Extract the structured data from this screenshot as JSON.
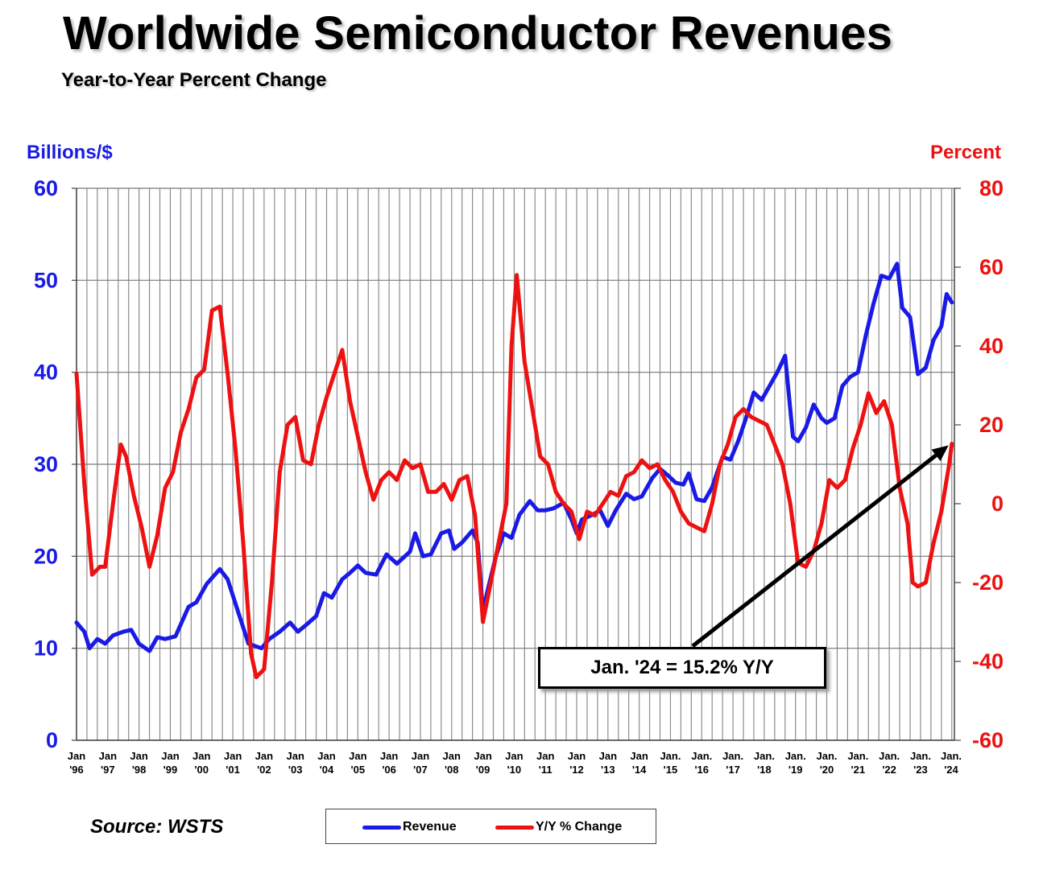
{
  "header": {
    "title": "Worldwide Semiconductor Revenues",
    "subtitle": "Year-to-Year Percent Change"
  },
  "source": "Source: WSTS",
  "annotation": "Jan. '24 = 15.2% Y/Y",
  "colors": {
    "revenue": "#1a1ae6",
    "yoy": "#ee1111",
    "grid": "#8c8c8c"
  },
  "chart_data": {
    "type": "line",
    "x_labels": [
      {
        "top": "Jan",
        "bottom": "'96"
      },
      {
        "top": "Jan",
        "bottom": "'97"
      },
      {
        "top": "Jan",
        "bottom": "'98"
      },
      {
        "top": "Jan",
        "bottom": "'99"
      },
      {
        "top": "Jan",
        "bottom": "'00"
      },
      {
        "top": "Jan",
        "bottom": "'01"
      },
      {
        "top": "Jan",
        "bottom": "'02"
      },
      {
        "top": "Jan",
        "bottom": "'03"
      },
      {
        "top": "Jan",
        "bottom": "'04"
      },
      {
        "top": "Jan",
        "bottom": "'05"
      },
      {
        "top": "Jan",
        "bottom": "'06"
      },
      {
        "top": "Jan",
        "bottom": "'07"
      },
      {
        "top": "Jan",
        "bottom": "'08"
      },
      {
        "top": "Jan",
        "bottom": "'09"
      },
      {
        "top": "Jan",
        "bottom": "'10"
      },
      {
        "top": "Jan",
        "bottom": "'11"
      },
      {
        "top": "Jan",
        "bottom": "'12"
      },
      {
        "top": "Jan",
        "bottom": "'13"
      },
      {
        "top": "Jan",
        "bottom": "'14"
      },
      {
        "top": "Jan.",
        "bottom": "'15"
      },
      {
        "top": "Jan.",
        "bottom": "'16"
      },
      {
        "top": "Jan.",
        "bottom": "'17"
      },
      {
        "top": "Jan.",
        "bottom": "'18"
      },
      {
        "top": "Jan.",
        "bottom": "'19"
      },
      {
        "top": "Jan.",
        "bottom": "'20"
      },
      {
        "top": "Jan.",
        "bottom": "'21"
      },
      {
        "top": "Jan.",
        "bottom": "'22"
      },
      {
        "top": "Jan.",
        "bottom": "'23"
      },
      {
        "top": "Jan.",
        "bottom": "'24"
      }
    ],
    "y_left": {
      "label": "Billions/$",
      "range": [
        0,
        60
      ],
      "ticks": [
        "0",
        "10",
        "20",
        "30",
        "40",
        "50",
        "60"
      ]
    },
    "y_right": {
      "label": "Percent",
      "range": [
        -60,
        80
      ],
      "ticks": [
        "-60",
        "-40",
        "-20",
        "0",
        "20",
        "40",
        "60",
        "80"
      ]
    },
    "grid": true,
    "legend_position": "bottom-center",
    "series": [
      {
        "name": "Revenue",
        "axis": "left",
        "points": [
          [
            "1996-01",
            12.8
          ],
          [
            "1996-04",
            11.8
          ],
          [
            "1996-06",
            10.0
          ],
          [
            "1996-09",
            11.0
          ],
          [
            "1996-12",
            10.5
          ],
          [
            "1997-03",
            11.4
          ],
          [
            "1997-07",
            11.8
          ],
          [
            "1997-10",
            12.0
          ],
          [
            "1998-01",
            10.5
          ],
          [
            "1998-05",
            9.7
          ],
          [
            "1998-08",
            11.2
          ],
          [
            "1998-11",
            11.0
          ],
          [
            "1999-03",
            11.3
          ],
          [
            "1999-08",
            14.5
          ],
          [
            "1999-11",
            15.0
          ],
          [
            "2000-03",
            17.0
          ],
          [
            "2000-08",
            18.6
          ],
          [
            "2000-11",
            17.5
          ],
          [
            "2001-03",
            14.0
          ],
          [
            "2001-07",
            10.5
          ],
          [
            "2001-12",
            10.0
          ],
          [
            "2002-03",
            11.0
          ],
          [
            "2002-07",
            11.8
          ],
          [
            "2002-11",
            12.8
          ],
          [
            "2003-02",
            11.8
          ],
          [
            "2003-05",
            12.5
          ],
          [
            "2003-09",
            13.5
          ],
          [
            "2003-12",
            16.0
          ],
          [
            "2004-03",
            15.5
          ],
          [
            "2004-07",
            17.5
          ],
          [
            "2004-10",
            18.2
          ],
          [
            "2005-01",
            19.0
          ],
          [
            "2005-04",
            18.2
          ],
          [
            "2005-08",
            18.0
          ],
          [
            "2005-12",
            20.2
          ],
          [
            "2006-04",
            19.2
          ],
          [
            "2006-09",
            20.5
          ],
          [
            "2006-11",
            22.5
          ],
          [
            "2007-02",
            20.0
          ],
          [
            "2007-05",
            20.2
          ],
          [
            "2007-09",
            22.5
          ],
          [
            "2007-12",
            22.8
          ],
          [
            "2008-02",
            20.8
          ],
          [
            "2008-05",
            21.5
          ],
          [
            "2008-09",
            22.8
          ],
          [
            "2008-11",
            21.5
          ],
          [
            "2009-01",
            14.0
          ],
          [
            "2009-03",
            16.5
          ],
          [
            "2009-06",
            20.0
          ],
          [
            "2009-09",
            22.5
          ],
          [
            "2009-12",
            22.0
          ],
          [
            "2010-03",
            24.5
          ],
          [
            "2010-07",
            26.0
          ],
          [
            "2010-10",
            25.0
          ],
          [
            "2011-01",
            25.0
          ],
          [
            "2011-04",
            25.2
          ],
          [
            "2011-08",
            25.8
          ],
          [
            "2011-11",
            24.0
          ],
          [
            "2012-01",
            22.5
          ],
          [
            "2012-03",
            24.0
          ],
          [
            "2012-07",
            24.5
          ],
          [
            "2012-10",
            25.0
          ],
          [
            "2013-01",
            23.3
          ],
          [
            "2013-04",
            25.0
          ],
          [
            "2013-08",
            26.8
          ],
          [
            "2013-11",
            26.2
          ],
          [
            "2014-02",
            26.5
          ],
          [
            "2014-06",
            28.5
          ],
          [
            "2014-09",
            29.5
          ],
          [
            "2014-12",
            28.8
          ],
          [
            "2015-03",
            28.0
          ],
          [
            "2015-06",
            27.8
          ],
          [
            "2015-08",
            29.0
          ],
          [
            "2015-11",
            26.2
          ],
          [
            "2016-02",
            26.0
          ],
          [
            "2016-05",
            27.5
          ],
          [
            "2016-09",
            30.8
          ],
          [
            "2016-12",
            30.5
          ],
          [
            "2017-03",
            32.5
          ],
          [
            "2017-06",
            35.0
          ],
          [
            "2017-09",
            37.8
          ],
          [
            "2017-12",
            37.0
          ],
          [
            "2018-03",
            38.5
          ],
          [
            "2018-06",
            40.0
          ],
          [
            "2018-09",
            41.8
          ],
          [
            "2018-12",
            33.0
          ],
          [
            "2019-02",
            32.5
          ],
          [
            "2019-05",
            34.0
          ],
          [
            "2019-08",
            36.5
          ],
          [
            "2019-11",
            35.0
          ],
          [
            "2020-01",
            34.5
          ],
          [
            "2020-04",
            35.0
          ],
          [
            "2020-07",
            38.5
          ],
          [
            "2020-10",
            39.5
          ],
          [
            "2021-01",
            40.0
          ],
          [
            "2021-04",
            44.0
          ],
          [
            "2021-07",
            47.5
          ],
          [
            "2021-10",
            50.5
          ],
          [
            "2022-01",
            50.2
          ],
          [
            "2022-04",
            51.8
          ],
          [
            "2022-06",
            47.0
          ],
          [
            "2022-09",
            46.0
          ],
          [
            "2022-12",
            39.8
          ],
          [
            "2023-03",
            40.5
          ],
          [
            "2023-06",
            43.5
          ],
          [
            "2023-09",
            45.0
          ],
          [
            "2023-11",
            48.5
          ],
          [
            "2024-01",
            47.6
          ]
        ]
      },
      {
        "name": "Y/Y % Change",
        "axis": "right",
        "points": [
          [
            "1996-01",
            33
          ],
          [
            "1996-04",
            5
          ],
          [
            "1996-07",
            -18
          ],
          [
            "1996-10",
            -16
          ],
          [
            "1996-12",
            -16
          ],
          [
            "1997-03",
            0
          ],
          [
            "1997-06",
            15
          ],
          [
            "1997-08",
            12
          ],
          [
            "1997-11",
            2
          ],
          [
            "1998-02",
            -6
          ],
          [
            "1998-05",
            -16
          ],
          [
            "1998-08",
            -8
          ],
          [
            "1998-11",
            4
          ],
          [
            "1999-02",
            8
          ],
          [
            "1999-05",
            18
          ],
          [
            "1999-08",
            24
          ],
          [
            "1999-11",
            32
          ],
          [
            "2000-02",
            34
          ],
          [
            "2000-05",
            49
          ],
          [
            "2000-08",
            50
          ],
          [
            "2000-11",
            33
          ],
          [
            "2001-02",
            14
          ],
          [
            "2001-05",
            -10
          ],
          [
            "2001-08",
            -38
          ],
          [
            "2001-10",
            -44
          ],
          [
            "2002-01",
            -42
          ],
          [
            "2002-04",
            -20
          ],
          [
            "2002-07",
            8
          ],
          [
            "2002-10",
            20
          ],
          [
            "2003-01",
            22
          ],
          [
            "2003-04",
            11
          ],
          [
            "2003-07",
            10
          ],
          [
            "2003-10",
            20
          ],
          [
            "2004-01",
            27
          ],
          [
            "2004-04",
            33
          ],
          [
            "2004-07",
            39
          ],
          [
            "2004-10",
            26
          ],
          [
            "2005-01",
            17
          ],
          [
            "2005-04",
            8
          ],
          [
            "2005-07",
            1
          ],
          [
            "2005-10",
            6
          ],
          [
            "2006-01",
            8
          ],
          [
            "2006-04",
            6
          ],
          [
            "2006-07",
            11
          ],
          [
            "2006-10",
            9
          ],
          [
            "2007-01",
            10
          ],
          [
            "2007-04",
            3
          ],
          [
            "2007-07",
            3
          ],
          [
            "2007-10",
            5
          ],
          [
            "2008-01",
            1
          ],
          [
            "2008-04",
            6
          ],
          [
            "2008-07",
            7
          ],
          [
            "2008-10",
            -3
          ],
          [
            "2009-01",
            -30
          ],
          [
            "2009-04",
            -20
          ],
          [
            "2009-07",
            -10
          ],
          [
            "2009-10",
            0
          ],
          [
            "2009-12",
            40
          ],
          [
            "2010-02",
            58
          ],
          [
            "2010-05",
            36
          ],
          [
            "2010-08",
            24
          ],
          [
            "2010-11",
            12
          ],
          [
            "2011-02",
            10
          ],
          [
            "2011-05",
            3
          ],
          [
            "2011-08",
            0
          ],
          [
            "2011-11",
            -2
          ],
          [
            "2012-02",
            -9
          ],
          [
            "2012-05",
            -2
          ],
          [
            "2012-08",
            -3
          ],
          [
            "2012-11",
            0
          ],
          [
            "2013-02",
            3
          ],
          [
            "2013-05",
            2
          ],
          [
            "2013-08",
            7
          ],
          [
            "2013-11",
            8
          ],
          [
            "2014-02",
            11
          ],
          [
            "2014-05",
            9
          ],
          [
            "2014-08",
            10
          ],
          [
            "2014-11",
            6
          ],
          [
            "2015-02",
            3
          ],
          [
            "2015-05",
            -2
          ],
          [
            "2015-08",
            -5
          ],
          [
            "2015-11",
            -6
          ],
          [
            "2016-02",
            -7
          ],
          [
            "2016-05",
            0
          ],
          [
            "2016-08",
            10
          ],
          [
            "2016-11",
            15
          ],
          [
            "2017-02",
            22
          ],
          [
            "2017-05",
            24
          ],
          [
            "2017-08",
            22
          ],
          [
            "2017-11",
            21
          ],
          [
            "2018-02",
            20
          ],
          [
            "2018-05",
            15
          ],
          [
            "2018-08",
            10
          ],
          [
            "2018-11",
            0
          ],
          [
            "2019-02",
            -15
          ],
          [
            "2019-05",
            -16
          ],
          [
            "2019-08",
            -12
          ],
          [
            "2019-11",
            -5
          ],
          [
            "2020-02",
            6
          ],
          [
            "2020-05",
            4
          ],
          [
            "2020-08",
            6
          ],
          [
            "2020-11",
            14
          ],
          [
            "2021-02",
            20
          ],
          [
            "2021-05",
            28
          ],
          [
            "2021-08",
            23
          ],
          [
            "2021-11",
            26
          ],
          [
            "2022-02",
            20
          ],
          [
            "2022-05",
            4
          ],
          [
            "2022-08",
            -5
          ],
          [
            "2022-10",
            -20
          ],
          [
            "2022-12",
            -21
          ],
          [
            "2023-03",
            -20
          ],
          [
            "2023-06",
            -10
          ],
          [
            "2023-09",
            -2
          ],
          [
            "2023-12",
            10
          ],
          [
            "2024-01",
            15.2
          ]
        ]
      }
    ]
  }
}
